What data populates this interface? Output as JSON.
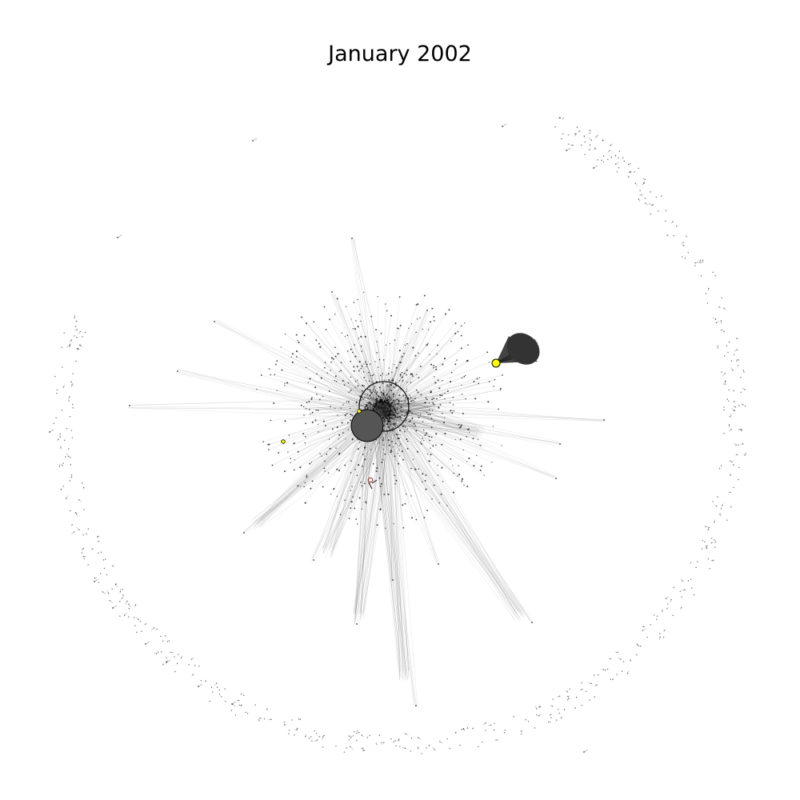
{
  "figure": {
    "title": "January 2002",
    "colors": {
      "background": "#ffffff",
      "edge": "#000000",
      "node": "#555555",
      "node_outline": "#000000",
      "highlight_node": "#ffff00",
      "red_node": "#b22222"
    }
  }
}
